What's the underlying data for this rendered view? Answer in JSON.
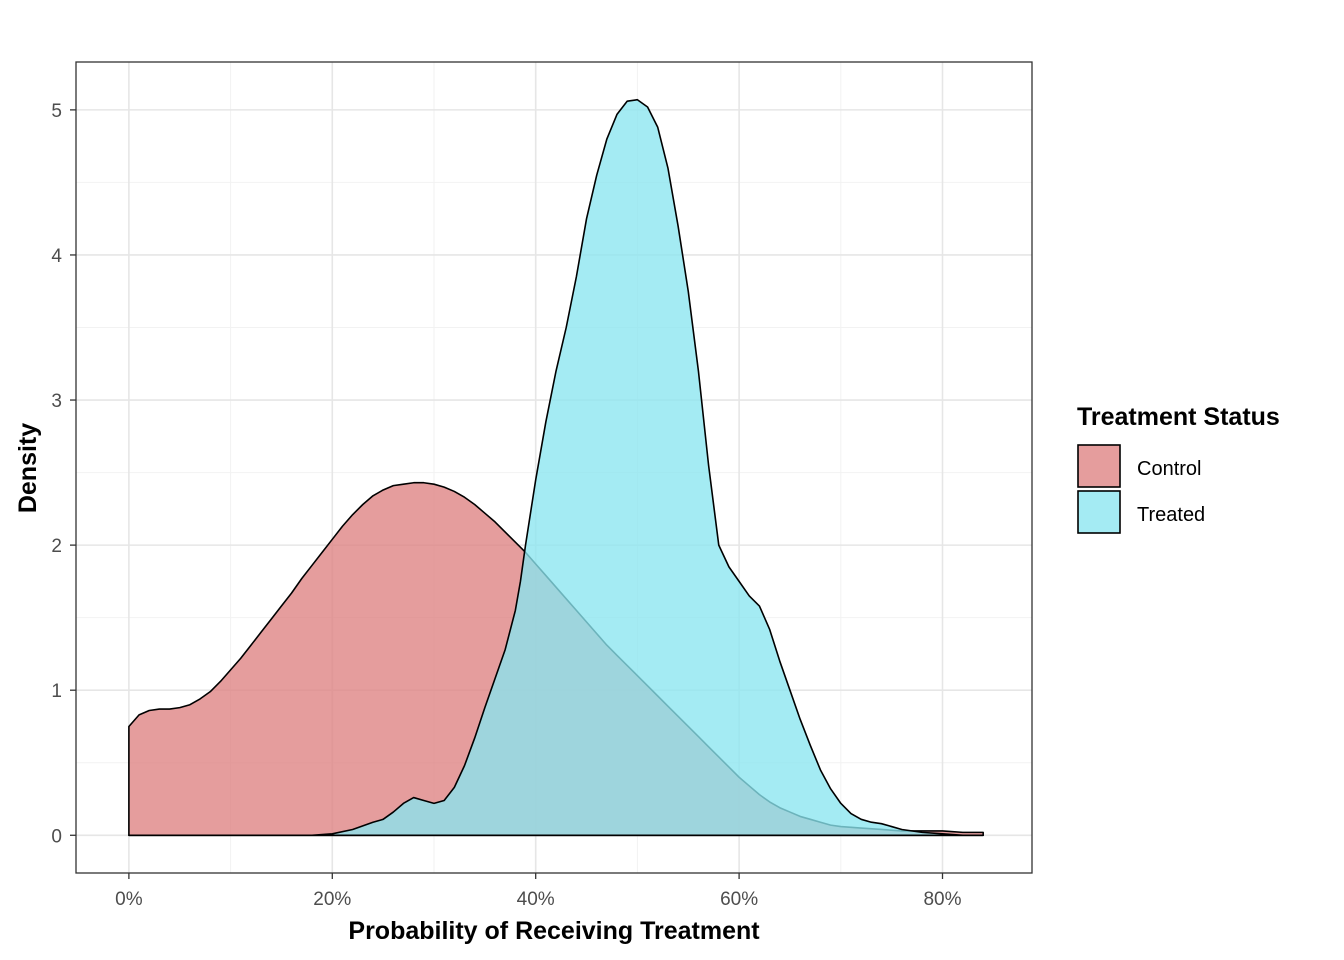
{
  "chart_data": {
    "type": "area",
    "title": "",
    "xlabel": "Probability of Receiving Treatment",
    "ylabel": "Density",
    "xlim": [
      -0.052,
      0.888
    ],
    "ylim": [
      -0.26,
      5.33
    ],
    "x_ticks": [
      0,
      0.2,
      0.4,
      0.6,
      0.8
    ],
    "x_tick_labels": [
      "0%",
      "20%",
      "40%",
      "60%",
      "80%"
    ],
    "y_ticks": [
      0,
      1,
      2,
      3,
      4,
      5
    ],
    "y_tick_labels": [
      "0",
      "1",
      "2",
      "3",
      "4",
      "5"
    ],
    "grid": true,
    "legend": {
      "title": "Treatment Status",
      "position": "right"
    },
    "series": [
      {
        "name": "Control",
        "color": "#DE8282",
        "points": [
          [
            0.0,
            0.75
          ],
          [
            0.01,
            0.83
          ],
          [
            0.02,
            0.86
          ],
          [
            0.03,
            0.87
          ],
          [
            0.04,
            0.87
          ],
          [
            0.05,
            0.88
          ],
          [
            0.06,
            0.9
          ],
          [
            0.07,
            0.94
          ],
          [
            0.08,
            0.99
          ],
          [
            0.09,
            1.06
          ],
          [
            0.1,
            1.14
          ],
          [
            0.11,
            1.22
          ],
          [
            0.12,
            1.31
          ],
          [
            0.13,
            1.4
          ],
          [
            0.14,
            1.49
          ],
          [
            0.15,
            1.58
          ],
          [
            0.16,
            1.67
          ],
          [
            0.17,
            1.77
          ],
          [
            0.18,
            1.86
          ],
          [
            0.19,
            1.95
          ],
          [
            0.2,
            2.04
          ],
          [
            0.21,
            2.13
          ],
          [
            0.22,
            2.21
          ],
          [
            0.23,
            2.28
          ],
          [
            0.24,
            2.34
          ],
          [
            0.25,
            2.38
          ],
          [
            0.26,
            2.41
          ],
          [
            0.27,
            2.42
          ],
          [
            0.28,
            2.43
          ],
          [
            0.29,
            2.43
          ],
          [
            0.3,
            2.42
          ],
          [
            0.31,
            2.4
          ],
          [
            0.32,
            2.37
          ],
          [
            0.33,
            2.33
          ],
          [
            0.34,
            2.28
          ],
          [
            0.35,
            2.22
          ],
          [
            0.36,
            2.16
          ],
          [
            0.37,
            2.09
          ],
          [
            0.38,
            2.02
          ],
          [
            0.39,
            1.95
          ],
          [
            0.4,
            1.87
          ],
          [
            0.41,
            1.79
          ],
          [
            0.42,
            1.71
          ],
          [
            0.43,
            1.63
          ],
          [
            0.44,
            1.55
          ],
          [
            0.45,
            1.47
          ],
          [
            0.46,
            1.39
          ],
          [
            0.47,
            1.31
          ],
          [
            0.48,
            1.24
          ],
          [
            0.49,
            1.17
          ],
          [
            0.5,
            1.1
          ],
          [
            0.51,
            1.03
          ],
          [
            0.52,
            0.96
          ],
          [
            0.53,
            0.89
          ],
          [
            0.54,
            0.82
          ],
          [
            0.55,
            0.75
          ],
          [
            0.56,
            0.68
          ],
          [
            0.57,
            0.61
          ],
          [
            0.58,
            0.54
          ],
          [
            0.59,
            0.47
          ],
          [
            0.6,
            0.4
          ],
          [
            0.61,
            0.34
          ],
          [
            0.62,
            0.28
          ],
          [
            0.63,
            0.23
          ],
          [
            0.64,
            0.19
          ],
          [
            0.65,
            0.16
          ],
          [
            0.66,
            0.13
          ],
          [
            0.67,
            0.11
          ],
          [
            0.68,
            0.09
          ],
          [
            0.69,
            0.07
          ],
          [
            0.7,
            0.06
          ],
          [
            0.72,
            0.05
          ],
          [
            0.74,
            0.04
          ],
          [
            0.76,
            0.03
          ],
          [
            0.78,
            0.03
          ],
          [
            0.8,
            0.03
          ],
          [
            0.82,
            0.02
          ],
          [
            0.84,
            0.02
          ]
        ]
      },
      {
        "name": "Treated",
        "color": "#8BE5EF",
        "points": [
          [
            0.0,
            0.0
          ],
          [
            0.05,
            0.0
          ],
          [
            0.1,
            0.0
          ],
          [
            0.15,
            0.0
          ],
          [
            0.18,
            0.0
          ],
          [
            0.2,
            0.01
          ],
          [
            0.22,
            0.04
          ],
          [
            0.24,
            0.09
          ],
          [
            0.25,
            0.11
          ],
          [
            0.26,
            0.16
          ],
          [
            0.27,
            0.22
          ],
          [
            0.28,
            0.26
          ],
          [
            0.29,
            0.24
          ],
          [
            0.3,
            0.22
          ],
          [
            0.31,
            0.24
          ],
          [
            0.32,
            0.33
          ],
          [
            0.33,
            0.48
          ],
          [
            0.34,
            0.67
          ],
          [
            0.35,
            0.88
          ],
          [
            0.36,
            1.08
          ],
          [
            0.37,
            1.28
          ],
          [
            0.38,
            1.55
          ],
          [
            0.385,
            1.75
          ],
          [
            0.39,
            2.0
          ],
          [
            0.4,
            2.45
          ],
          [
            0.41,
            2.85
          ],
          [
            0.42,
            3.2
          ],
          [
            0.43,
            3.5
          ],
          [
            0.44,
            3.85
          ],
          [
            0.45,
            4.25
          ],
          [
            0.46,
            4.55
          ],
          [
            0.47,
            4.8
          ],
          [
            0.48,
            4.97
          ],
          [
            0.49,
            5.06
          ],
          [
            0.5,
            5.07
          ],
          [
            0.51,
            5.02
          ],
          [
            0.52,
            4.88
          ],
          [
            0.53,
            4.6
          ],
          [
            0.54,
            4.2
          ],
          [
            0.55,
            3.75
          ],
          [
            0.56,
            3.2
          ],
          [
            0.57,
            2.55
          ],
          [
            0.58,
            2.0
          ],
          [
            0.59,
            1.85
          ],
          [
            0.6,
            1.75
          ],
          [
            0.61,
            1.65
          ],
          [
            0.62,
            1.58
          ],
          [
            0.63,
            1.42
          ],
          [
            0.64,
            1.2
          ],
          [
            0.65,
            1.0
          ],
          [
            0.66,
            0.8
          ],
          [
            0.67,
            0.62
          ],
          [
            0.68,
            0.45
          ],
          [
            0.69,
            0.32
          ],
          [
            0.7,
            0.22
          ],
          [
            0.71,
            0.15
          ],
          [
            0.72,
            0.11
          ],
          [
            0.73,
            0.09
          ],
          [
            0.74,
            0.08
          ],
          [
            0.75,
            0.06
          ],
          [
            0.76,
            0.04
          ],
          [
            0.78,
            0.02
          ],
          [
            0.8,
            0.01
          ],
          [
            0.82,
            0.0
          ],
          [
            0.84,
            0.0
          ]
        ]
      }
    ]
  }
}
